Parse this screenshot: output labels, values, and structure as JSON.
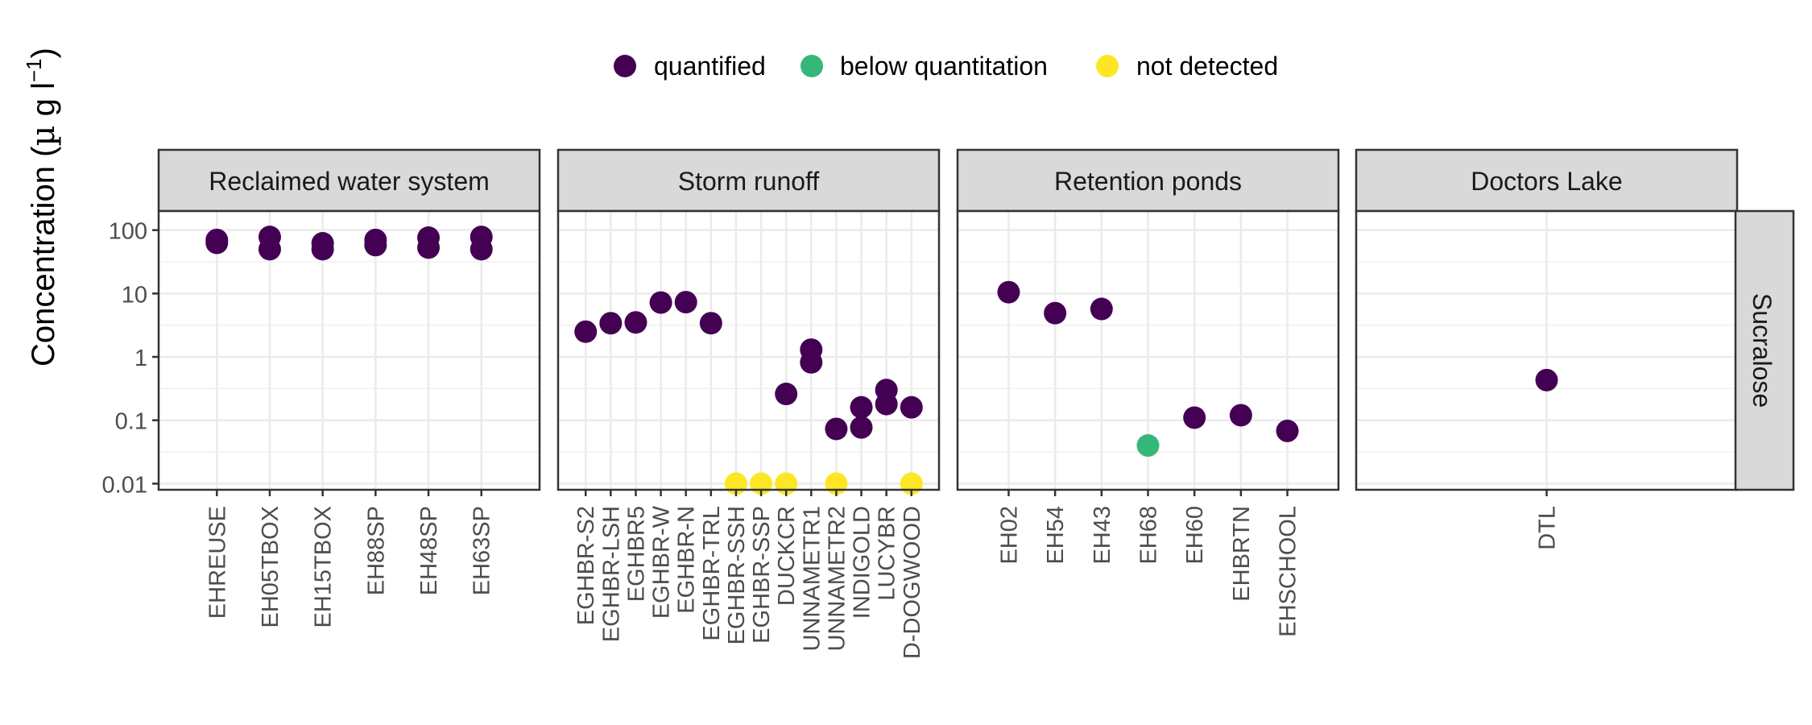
{
  "legend": {
    "items": [
      {
        "label": "quantified",
        "color": "#440154"
      },
      {
        "label": "below quantitation",
        "color": "#35B779"
      },
      {
        "label": "not detected",
        "color": "#FDE725"
      }
    ],
    "position": "top"
  },
  "chart_data": {
    "type": "scatter",
    "ylabel": "Concentration (µ g l⁻¹)",
    "yscale": "log10",
    "ylim": [
      0.008,
      200
    ],
    "yticks": [
      0.01,
      0.1,
      1,
      10,
      100
    ],
    "yticklabels": [
      "0.01",
      "0.1",
      "1",
      "10",
      "100"
    ],
    "grid": true,
    "strip_right": "Sucralose",
    "colors": {
      "quantified": "#440154",
      "below quantitation": "#35B779",
      "not detected": "#FDE725"
    },
    "facets": [
      {
        "title": "Reclaimed water system",
        "categories": [
          "EHREUSE",
          "EH05TBOX",
          "EH15TBOX",
          "EH88SP",
          "EH48SP",
          "EH63SP"
        ],
        "points": [
          {
            "x": "EHREUSE",
            "y": 70,
            "status": "quantified"
          },
          {
            "x": "EHREUSE",
            "y": 63,
            "status": "quantified"
          },
          {
            "x": "EH05TBOX",
            "y": 78,
            "status": "quantified"
          },
          {
            "x": "EH05TBOX",
            "y": 50,
            "status": "quantified"
          },
          {
            "x": "EH15TBOX",
            "y": 62,
            "status": "quantified"
          },
          {
            "x": "EH15TBOX",
            "y": 50,
            "status": "quantified"
          },
          {
            "x": "EH88SP",
            "y": 70,
            "status": "quantified"
          },
          {
            "x": "EH88SP",
            "y": 58,
            "status": "quantified"
          },
          {
            "x": "EH48SP",
            "y": 76,
            "status": "quantified"
          },
          {
            "x": "EH48SP",
            "y": 53,
            "status": "quantified"
          },
          {
            "x": "EH63SP",
            "y": 78,
            "status": "quantified"
          },
          {
            "x": "EH63SP",
            "y": 50,
            "status": "quantified"
          }
        ]
      },
      {
        "title": "Storm runoff",
        "categories": [
          "EGHBR-S2",
          "EGHBR-LSH",
          "EGHBR5",
          "EGHBR-W",
          "EGHBR-N",
          "EGHBR-TRL",
          "EGHBR-SSH",
          "EGHBR-SSP",
          "DUCKCR",
          "UNNAMETR1",
          "UNNAMETR2",
          "INDIGOLD",
          "LUCYBR",
          "D-DOGWOOD"
        ],
        "points": [
          {
            "x": "EGHBR-S2",
            "y": 2.5,
            "status": "quantified"
          },
          {
            "x": "EGHBR-LSH",
            "y": 3.4,
            "status": "quantified"
          },
          {
            "x": "EGHBR5",
            "y": 3.5,
            "status": "quantified"
          },
          {
            "x": "EGHBR-W",
            "y": 7.2,
            "status": "quantified"
          },
          {
            "x": "EGHBR-N",
            "y": 7.3,
            "status": "quantified"
          },
          {
            "x": "EGHBR-TRL",
            "y": 3.4,
            "status": "quantified"
          },
          {
            "x": "EGHBR-SSH",
            "y": 0.01,
            "status": "not detected"
          },
          {
            "x": "EGHBR-SSP",
            "y": 0.01,
            "status": "not detected"
          },
          {
            "x": "DUCKCR",
            "y": 0.26,
            "status": "quantified"
          },
          {
            "x": "DUCKCR",
            "y": 0.01,
            "status": "not detected"
          },
          {
            "x": "UNNAMETR1",
            "y": 1.3,
            "status": "quantified"
          },
          {
            "x": "UNNAMETR1",
            "y": 0.82,
            "status": "quantified"
          },
          {
            "x": "UNNAMETR2",
            "y": 0.073,
            "status": "quantified"
          },
          {
            "x": "UNNAMETR2",
            "y": 0.01,
            "status": "not detected"
          },
          {
            "x": "INDIGOLD",
            "y": 0.16,
            "status": "quantified"
          },
          {
            "x": "INDIGOLD",
            "y": 0.077,
            "status": "quantified"
          },
          {
            "x": "LUCYBR",
            "y": 0.3,
            "status": "quantified"
          },
          {
            "x": "LUCYBR",
            "y": 0.18,
            "status": "quantified"
          },
          {
            "x": "D-DOGWOOD",
            "y": 0.16,
            "status": "quantified"
          },
          {
            "x": "D-DOGWOOD",
            "y": 0.01,
            "status": "not detected"
          }
        ]
      },
      {
        "title": "Retention ponds",
        "categories": [
          "EH02",
          "EH54",
          "EH43",
          "EH68",
          "EH60",
          "EHBRTN",
          "EHSCHOOL"
        ],
        "points": [
          {
            "x": "EH02",
            "y": 10.5,
            "status": "quantified"
          },
          {
            "x": "EH54",
            "y": 4.9,
            "status": "quantified"
          },
          {
            "x": "EH43",
            "y": 5.7,
            "status": "quantified"
          },
          {
            "x": "EH68",
            "y": 0.04,
            "status": "below quantitation"
          },
          {
            "x": "EH60",
            "y": 0.11,
            "status": "quantified"
          },
          {
            "x": "EHBRTN",
            "y": 0.12,
            "status": "quantified"
          },
          {
            "x": "EHSCHOOL",
            "y": 0.068,
            "status": "quantified"
          }
        ]
      },
      {
        "title": "Doctors Lake",
        "categories": [
          "DTL"
        ],
        "points": [
          {
            "x": "DTL",
            "y": 0.43,
            "status": "quantified"
          }
        ]
      }
    ]
  }
}
